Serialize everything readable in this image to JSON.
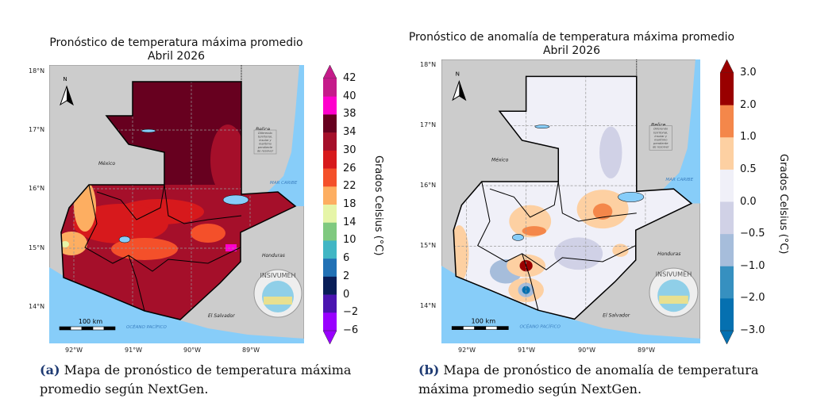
{
  "figures": [
    {
      "title_line1": "Pronóstico de temperatura máxima promedio",
      "title_line2": "Abril 2026",
      "colorbar": {
        "label": "Grados Celsius (°C)",
        "ticks": [
          "42",
          "40",
          "38",
          "34",
          "30",
          "26",
          "22",
          "18",
          "14",
          "10",
          "6",
          "2",
          "0",
          "−2",
          "−6"
        ],
        "colors": [
          "#c51b8a",
          "#ff00cc",
          "#67001f",
          "#a50f2a",
          "#d7191c",
          "#f4502a",
          "#fdae61",
          "#e6f5a8",
          "#7fc97f",
          "#41b6c4",
          "#2171b5",
          "#081d58",
          "#4a14b0",
          "#9900ff"
        ],
        "extend_top": "#c51b8a",
        "extend_bottom": "#9900ff"
      },
      "caption_tag": "(a)",
      "caption_text": "Mapa de pronóstico de temperatura máxima promedio según NextGen."
    },
    {
      "title_line1": "Pronóstico de anomalía de temperatura máxima promedio",
      "title_line2": "Abril 2026",
      "colorbar": {
        "label": "Grados Celsius (°C)",
        "ticks": [
          "3.0",
          "2.0",
          "1.0",
          "0.5",
          "0.0",
          "−0.5",
          "−1.0",
          "−2.0",
          "−3.0"
        ],
        "colors": [
          "#990000",
          "#f4874a",
          "#fdd0a2",
          "#f0f0f8",
          "#d0d1e6",
          "#a6bddb",
          "#3690c0",
          "#0570b0"
        ],
        "extend_top": "#990000",
        "extend_bottom": "#0570b0"
      },
      "caption_tag": "(b)",
      "caption_text": "Mapa de pronóstico de anomalía de temperatura máxima promedio según NextGen."
    }
  ],
  "map_labels": {
    "mexico": "México",
    "belize": "Belice",
    "honduras": "Honduras",
    "el_salvador": "El Salvador",
    "caribbean": "MAR CARIBE",
    "pacific": "OCÉANO PACÍFICO",
    "dispute": [
      "Diferendo",
      "territorial,",
      "insular y",
      "marítimo",
      "pendiente",
      "de resolver"
    ],
    "north": "N",
    "scale": "100 km",
    "logo": "INSIVUMEH"
  },
  "lat_labels": [
    "18°N",
    "17°N",
    "16°N",
    "15°N",
    "14°N"
  ],
  "lon_labels": [
    "92°W",
    "91°W",
    "90°W",
    "89°W"
  ],
  "colors": {
    "land": "#cccccc",
    "water": "#87cdf9",
    "caption_tag": "#1f3b73"
  }
}
